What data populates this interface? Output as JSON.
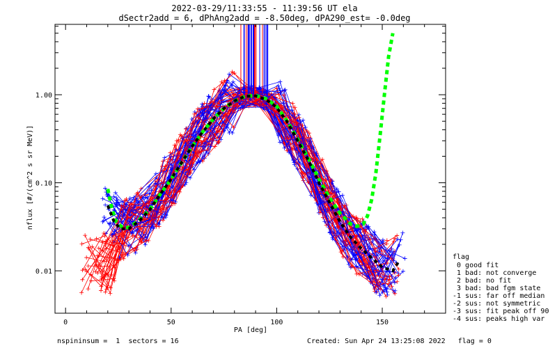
{
  "chart_data": {
    "type": "line",
    "title": "2022-03-29/11:33:55 - 11:39:56 UT ela",
    "subtitle": "dSectr2add = 6, dPhAng2add = -8.50deg, dPA290_est=  -0.0deg",
    "xlabel": "PA [deg]",
    "ylabel": "nflux [#/(cm^2 s sr MeV)]",
    "xlim": [
      -5,
      180
    ],
    "ylim": [
      0.0033,
      6.3
    ],
    "y_scale": "log",
    "x_ticks": [
      0,
      50,
      100,
      150
    ],
    "x_tick_labels": [
      "0",
      "50",
      "100",
      "150"
    ],
    "y_ticks": [
      0.01,
      0.1,
      1.0
    ],
    "y_tick_labels": [
      "0.01",
      "0.10",
      "1.00"
    ],
    "colors": {
      "measured_a": "#ff0000",
      "measured_b": "#0000ff",
      "fit": "#00ff00",
      "median": "#000000"
    },
    "series": [
      {
        "style": "dashed",
        "color": "#00ff00",
        "x": [
          20,
          22,
          24,
          27,
          30,
          35,
          40,
          45,
          50,
          55,
          60,
          65,
          70,
          75,
          80,
          85,
          90,
          95,
          100,
          105,
          110,
          115,
          120,
          125,
          130,
          135,
          138,
          141,
          143,
          145,
          147,
          149,
          151,
          153,
          155
        ],
        "y": [
          0.085,
          0.05,
          0.036,
          0.031,
          0.031,
          0.038,
          0.05,
          0.075,
          0.11,
          0.17,
          0.26,
          0.38,
          0.53,
          0.7,
          0.85,
          0.96,
          0.98,
          0.9,
          0.74,
          0.5,
          0.31,
          0.19,
          0.11,
          0.068,
          0.045,
          0.034,
          0.032,
          0.034,
          0.042,
          0.065,
          0.13,
          0.35,
          1.0,
          2.7,
          5.0
        ]
      },
      {
        "style": "dashed",
        "color": "#000000",
        "x": [
          20,
          23,
          26,
          30,
          35,
          40,
          45,
          50,
          55,
          60,
          65,
          70,
          75,
          80,
          85,
          90,
          95,
          100,
          105,
          110,
          115,
          120,
          125,
          130,
          135,
          140,
          145,
          150,
          155,
          158
        ],
        "y": [
          0.055,
          0.036,
          0.03,
          0.03,
          0.037,
          0.05,
          0.075,
          0.11,
          0.17,
          0.26,
          0.38,
          0.53,
          0.7,
          0.85,
          0.96,
          0.97,
          0.88,
          0.72,
          0.49,
          0.3,
          0.18,
          0.1,
          0.06,
          0.036,
          0.024,
          0.018,
          0.014,
          0.011,
          0.01,
          0.013
        ]
      }
    ],
    "legend": {
      "position": "right",
      "title": "flag",
      "entries": [
        " 0 good fit",
        " 1 bad: not converge",
        " 2 bad: no fit",
        " 3 bad: bad fgm state",
        "-1 sus: far off median",
        "-2 sus: not symmetric",
        "-3 sus: fit peak off 90",
        "-4 sus: peaks high var"
      ]
    }
  },
  "footer": {
    "left": "nspininsum =  1  sectors = 16",
    "right": "Created: Sun Apr 24 13:25:08 2022   flag = 0"
  }
}
